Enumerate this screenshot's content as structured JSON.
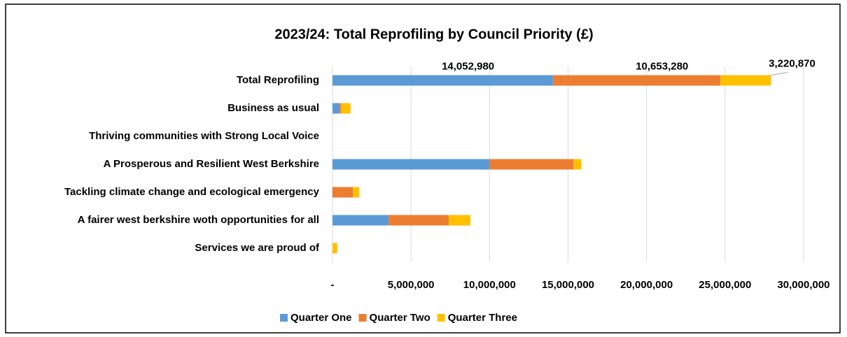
{
  "chart_data": {
    "type": "stacked-barh",
    "title": "2023/24:  Total Reprofiling by Council Priority (£)",
    "categories": [
      "Total Reprofiling",
      "Business as usual",
      "Thriving communities with Strong Local Voice",
      "A Prosperous and Resilient West Berkshire",
      "Tackling climate change and ecological emergency",
      "A fairer west berkshire woth opportunities for all",
      "Services we are proud of"
    ],
    "series": [
      {
        "name": "Quarter One",
        "color": "#5b9bd5",
        "values": [
          14052980,
          450000,
          0,
          10000000,
          0,
          3570000,
          0
        ],
        "value_labels": [
          "14,052,980",
          null,
          null,
          null,
          null,
          null,
          null
        ]
      },
      {
        "name": "Quarter Two",
        "color": "#ed7d31",
        "values": [
          10653280,
          100000,
          0,
          5350000,
          1300000,
          3830000,
          0
        ],
        "value_labels": [
          "10,653,280",
          null,
          null,
          null,
          null,
          null,
          null
        ]
      },
      {
        "name": "Quarter Three",
        "color": "#ffc000",
        "values": [
          3220870,
          600000,
          0,
          500000,
          400000,
          1380000,
          300000
        ],
        "value_labels": [
          "3,220,870",
          null,
          null,
          null,
          null,
          null,
          null
        ]
      }
    ],
    "xlim": [
      0,
      30000000
    ],
    "xticks": [
      {
        "value": 0,
        "label": "-"
      },
      {
        "value": 5000000,
        "label": "5,000,000"
      },
      {
        "value": 10000000,
        "label": "10,000,000"
      },
      {
        "value": 15000000,
        "label": "15,000,000"
      },
      {
        "value": 20000000,
        "label": "20,000,000"
      },
      {
        "value": 25000000,
        "label": "25,000,000"
      },
      {
        "value": 30000000,
        "label": "30,000,000"
      }
    ],
    "grid": true,
    "legend": "bottom"
  }
}
